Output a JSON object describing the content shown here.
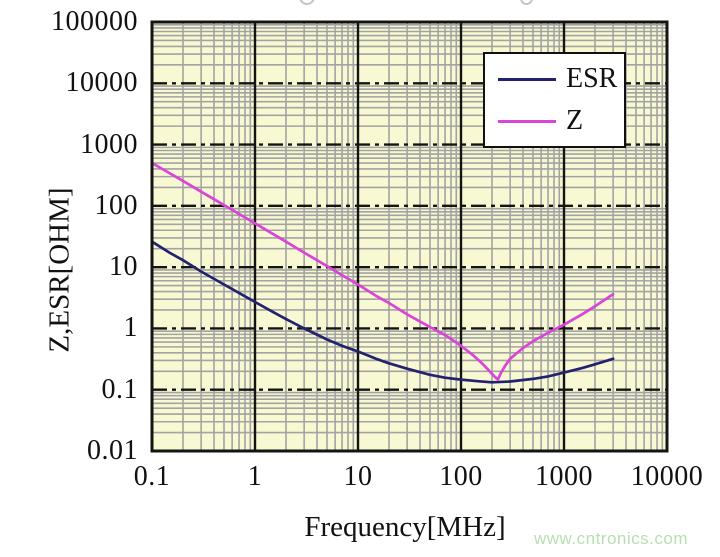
{
  "watermark": {
    "text": "www.cntronics.com",
    "color": "#b7dfb2"
  },
  "chart_data": {
    "type": "line",
    "xlabel": "Frequency[MHz]",
    "ylabel": "Z,ESR[OHM]",
    "x_scale": "log",
    "y_scale": "log",
    "xlim": [
      0.1,
      10000
    ],
    "ylim": [
      0.01,
      100000
    ],
    "x_tick_labels": [
      "0.1",
      "1",
      "10",
      "100",
      "1000",
      "10000"
    ],
    "y_tick_labels": [
      "100000",
      "10000",
      "1000",
      "100",
      "10",
      "1",
      "0.1",
      "0.01"
    ],
    "grid": {
      "background": "#f8f8d2",
      "minor_color": "#a3a3a3",
      "major_color": "#141414",
      "frame_color": "#141414"
    },
    "legend": {
      "position": "top-right",
      "entries": [
        {
          "label": "ESR",
          "color": "#232270"
        },
        {
          "label": "Z",
          "color": "#d944d9"
        }
      ]
    },
    "series": [
      {
        "name": "ESR",
        "color": "#232270",
        "points": [
          [
            0.1,
            26
          ],
          [
            0.15,
            17
          ],
          [
            0.2,
            13
          ],
          [
            0.3,
            8.5
          ],
          [
            0.5,
            5.2
          ],
          [
            0.7,
            3.8
          ],
          [
            1,
            2.7
          ],
          [
            1.5,
            1.85
          ],
          [
            2,
            1.42
          ],
          [
            3,
            1.0
          ],
          [
            5,
            0.66
          ],
          [
            7,
            0.52
          ],
          [
            10,
            0.42
          ],
          [
            15,
            0.32
          ],
          [
            20,
            0.27
          ],
          [
            30,
            0.22
          ],
          [
            50,
            0.175
          ],
          [
            70,
            0.157
          ],
          [
            100,
            0.146
          ],
          [
            150,
            0.137
          ],
          [
            200,
            0.132
          ],
          [
            300,
            0.136
          ],
          [
            500,
            0.15
          ],
          [
            700,
            0.165
          ],
          [
            1000,
            0.19
          ],
          [
            1500,
            0.225
          ],
          [
            2000,
            0.26
          ],
          [
            3000,
            0.32
          ]
        ]
      },
      {
        "name": "Z",
        "color": "#d944d9",
        "points": [
          [
            0.1,
            500
          ],
          [
            0.2,
            255
          ],
          [
            0.3,
            170
          ],
          [
            0.5,
            103
          ],
          [
            0.7,
            74
          ],
          [
            1,
            52
          ],
          [
            2,
            26
          ],
          [
            3,
            17.3
          ],
          [
            5,
            10.4
          ],
          [
            7,
            7.4
          ],
          [
            10,
            5.2
          ],
          [
            15,
            3.4
          ],
          [
            20,
            2.6
          ],
          [
            30,
            1.7
          ],
          [
            50,
            1.05
          ],
          [
            70,
            0.78
          ],
          [
            100,
            0.52
          ],
          [
            130,
            0.37
          ],
          [
            160,
            0.27
          ],
          [
            190,
            0.2
          ],
          [
            215,
            0.16
          ],
          [
            228,
            0.147
          ],
          [
            245,
            0.19
          ],
          [
            270,
            0.25
          ],
          [
            300,
            0.32
          ],
          [
            400,
            0.48
          ],
          [
            500,
            0.62
          ],
          [
            700,
            0.85
          ],
          [
            1000,
            1.15
          ],
          [
            1500,
            1.7
          ],
          [
            2000,
            2.3
          ],
          [
            3000,
            3.6
          ]
        ]
      }
    ]
  }
}
